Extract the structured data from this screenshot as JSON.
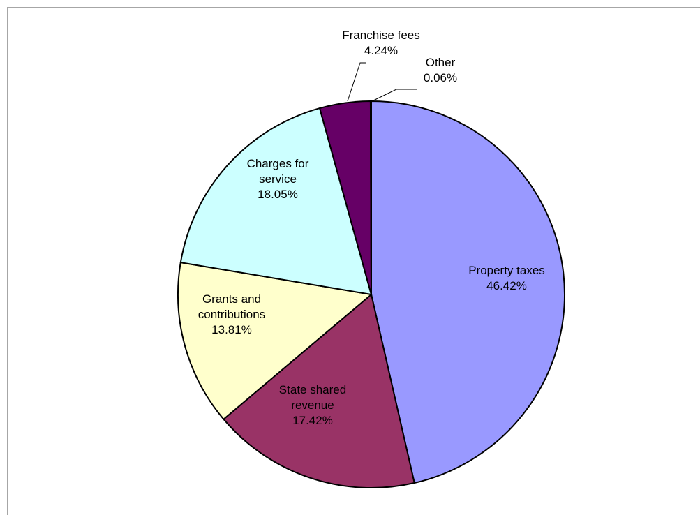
{
  "chart_data": {
    "type": "pie",
    "title": "",
    "slices": [
      {
        "key": "property",
        "lines": [
          "Property taxes",
          "46.42%"
        ],
        "value": 46.42,
        "color": "#9999ff"
      },
      {
        "key": "state",
        "lines": [
          "State shared",
          "revenue",
          "17.42%"
        ],
        "value": 17.42,
        "color": "#993366"
      },
      {
        "key": "grants",
        "lines": [
          "Grants and",
          "contributions",
          "13.81%"
        ],
        "value": 13.81,
        "color": "#ffffcc"
      },
      {
        "key": "charges",
        "lines": [
          "Charges for",
          "service",
          "18.05%"
        ],
        "value": 18.05,
        "color": "#ccffff"
      },
      {
        "key": "franchise",
        "lines": [
          "Franchise fees",
          "4.24%"
        ],
        "value": 4.24,
        "color": "#660066"
      },
      {
        "key": "other",
        "lines": [
          "Other",
          "0.06%"
        ],
        "value": 0.06,
        "color": "#ffffff"
      }
    ],
    "start_angle_deg": 0,
    "direction": "clockwise",
    "legend": "none"
  }
}
